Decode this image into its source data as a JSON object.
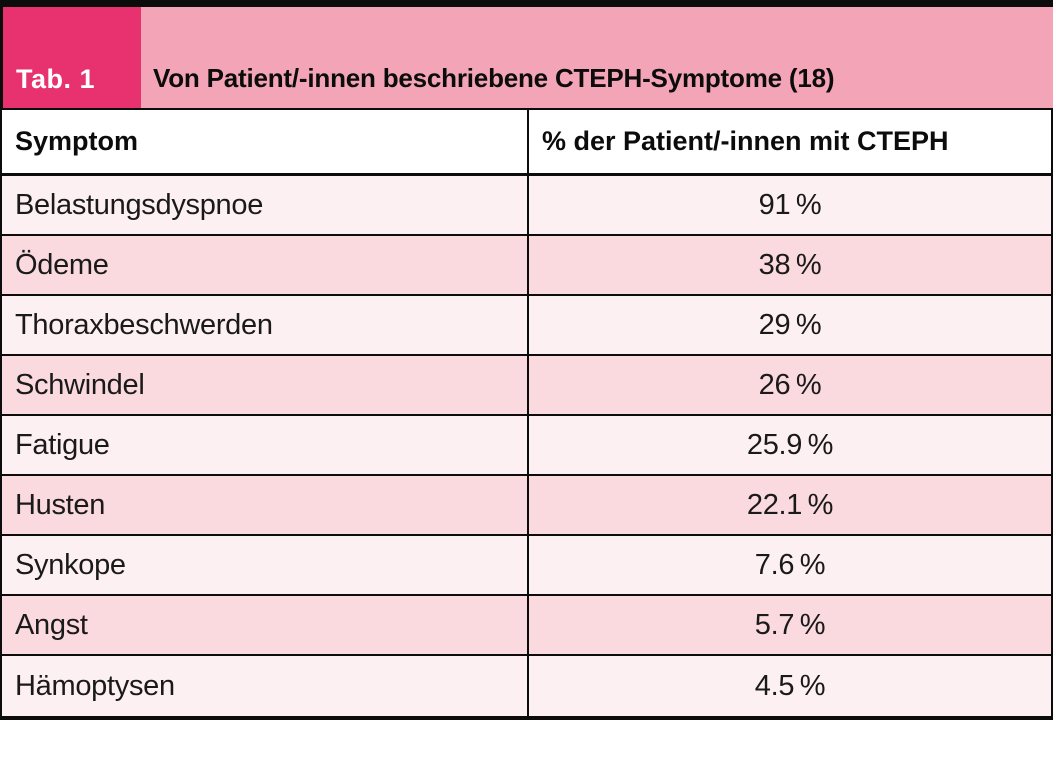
{
  "header": {
    "tab_label": "Tab. 1",
    "title": "Von Patient/-innen beschriebene CTEPH-Symptome (18)"
  },
  "table": {
    "columns": {
      "symptom": "Symptom",
      "percentage": "% der Patient/-innen mit CTEPH"
    },
    "rows": [
      {
        "symptom": "Belastungsdyspnoe",
        "value": "91 %"
      },
      {
        "symptom": "Ödeme",
        "value": "38 %"
      },
      {
        "symptom": "Thoraxbeschwerden",
        "value": "29 %"
      },
      {
        "symptom": "Schwindel",
        "value": "26 %"
      },
      {
        "symptom": "Fatigue",
        "value": "25.9 %"
      },
      {
        "symptom": "Husten",
        "value": "22.1 %"
      },
      {
        "symptom": "Synkope",
        "value": "7.6 %"
      },
      {
        "symptom": "Angst",
        "value": "5.7 %"
      },
      {
        "symptom": "Hämoptysen",
        "value": "4.5 %"
      }
    ]
  },
  "colors": {
    "badge": "#e8316f",
    "banner": "#f3a4b6",
    "row_light": "#fdf0f3",
    "row_dark": "#fad9df",
    "border": "#0c0c0c",
    "header_row_bg": "#ffffff"
  },
  "chart_data": {
    "type": "table",
    "title": "Von Patient/-innen beschriebene CTEPH-Symptome (18)",
    "columns": [
      "Symptom",
      "% der Patient/-innen mit CTEPH"
    ],
    "categories": [
      "Belastungsdyspnoe",
      "Ödeme",
      "Thoraxbeschwerden",
      "Schwindel",
      "Fatigue",
      "Husten",
      "Synkope",
      "Angst",
      "Hämoptysen"
    ],
    "values": [
      91,
      38,
      29,
      26,
      25.9,
      22.1,
      7.6,
      5.7,
      4.5
    ],
    "value_unit": "%"
  }
}
